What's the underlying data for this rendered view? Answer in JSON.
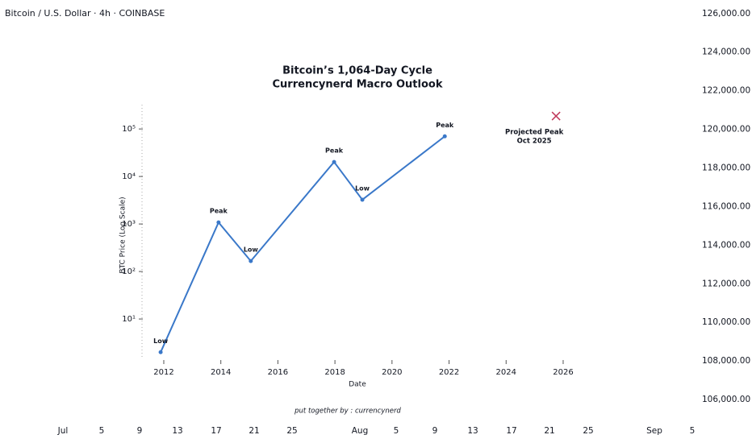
{
  "chart_data": [
    {
      "type": "axes",
      "title": "Bitcoin / U.S. Dollar · 4h · COINBASE",
      "ylim": [
        105000,
        126700
      ],
      "yticks": [
        {
          "value": 126000,
          "label": "126,000.00"
        },
        {
          "value": 124000,
          "label": "124,000.00"
        },
        {
          "value": 122000,
          "label": "122,000.00"
        },
        {
          "value": 120000,
          "label": "120,000.00"
        },
        {
          "value": 118000,
          "label": "118,000.00"
        },
        {
          "value": 116000,
          "label": "116,000.00"
        },
        {
          "value": 114000,
          "label": "114,000.00"
        },
        {
          "value": 112000,
          "label": "112,000.00"
        },
        {
          "value": 110000,
          "label": "110,000.00"
        },
        {
          "value": 108000,
          "label": "108,000.00"
        },
        {
          "value": 106000,
          "label": "106,000.00"
        }
      ],
      "categories": [
        "Jul",
        "5",
        "9",
        "13",
        "17",
        "21",
        "25",
        "Aug",
        "5",
        "9",
        "13",
        "17",
        "21",
        "25",
        "Sep",
        "5"
      ]
    },
    {
      "type": "line",
      "title": "Bitcoin’s 1,064-Day Cycle",
      "subtitle": "Currencynerd Macro Outlook",
      "x_label": "Date",
      "y_label": "BTC Price (Log Scale)",
      "log_y": true,
      "xlim": [
        2011.35,
        2026.51
      ],
      "xticks": [
        2012,
        2014,
        2016,
        2018,
        2020,
        2022,
        2024,
        2026
      ],
      "ylim": [
        1.48,
        324000
      ],
      "yticks": [
        {
          "value": 10,
          "label": "10¹"
        },
        {
          "value": 100,
          "label": "10²"
        },
        {
          "value": 1000,
          "label": "10³"
        },
        {
          "value": 10000,
          "label": "10⁴"
        },
        {
          "value": 100000,
          "label": "10⁵"
        }
      ],
      "series": [
        {
          "color": "#3a78c9",
          "x": [
            2011.89,
            2013.92,
            2015.05,
            2017.97,
            2018.96,
            2021.85
          ],
          "values": [
            2,
            1080,
            166,
            20200,
            3240,
            70000
          ],
          "point_labels": [
            "Low",
            "Peak",
            "Low",
            "Peak",
            "Low",
            "Peak"
          ]
        }
      ],
      "projected": {
        "x": 2025.75,
        "value": 187000,
        "color": "#c0395b",
        "label_lines": [
          "Projected Peak",
          "Oct 2025"
        ]
      },
      "credit": "put together by : currencynerd"
    }
  ]
}
